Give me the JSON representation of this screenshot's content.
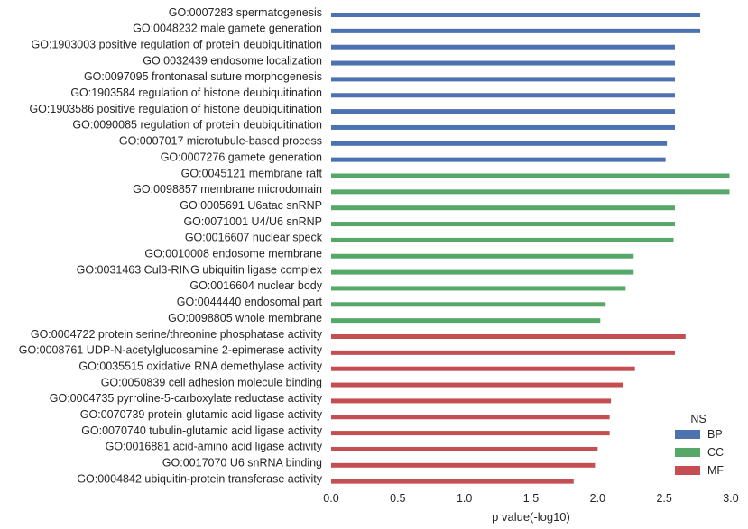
{
  "chart_data": {
    "type": "bar",
    "orientation": "horizontal",
    "xlabel": "p value(-log10)",
    "ylabel": "",
    "xlim": [
      0,
      3.0
    ],
    "x_ticks": [
      "0.0",
      "0.5",
      "1.0",
      "1.5",
      "2.0",
      "2.5",
      "3.0"
    ],
    "grid": false,
    "legend_title": "NS",
    "legend_position": "bottom-right",
    "legend": [
      {
        "name": "BP",
        "color": "#4C72B0"
      },
      {
        "name": "CC",
        "color": "#55A868"
      },
      {
        "name": "MF",
        "color": "#C44E52"
      }
    ],
    "categories": [
      {
        "label": "GO:0007283 spermatogenesis",
        "value": 2.77,
        "ns": "BP"
      },
      {
        "label": "GO:0048232 male gamete generation",
        "value": 2.77,
        "ns": "BP"
      },
      {
        "label": "GO:1903003 positive regulation of protein deubiquitination",
        "value": 2.58,
        "ns": "BP"
      },
      {
        "label": "GO:0032439 endosome localization",
        "value": 2.58,
        "ns": "BP"
      },
      {
        "label": "GO:0097095 frontonasal suture morphogenesis",
        "value": 2.58,
        "ns": "BP"
      },
      {
        "label": "GO:1903584 regulation of histone deubiquitination",
        "value": 2.58,
        "ns": "BP"
      },
      {
        "label": "GO:1903586 positive regulation of histone deubiquitination",
        "value": 2.58,
        "ns": "BP"
      },
      {
        "label": "GO:0090085 regulation of protein deubiquitination",
        "value": 2.58,
        "ns": "BP"
      },
      {
        "label": "GO:0007017 microtubule-based process",
        "value": 2.52,
        "ns": "BP"
      },
      {
        "label": "GO:0007276 gamete generation",
        "value": 2.51,
        "ns": "BP"
      },
      {
        "label": "GO:0045121 membrane raft",
        "value": 2.99,
        "ns": "CC"
      },
      {
        "label": "GO:0098857 membrane microdomain",
        "value": 2.99,
        "ns": "CC"
      },
      {
        "label": "GO:0005691 U6atac snRNP",
        "value": 2.58,
        "ns": "CC"
      },
      {
        "label": "GO:0071001 U4/U6 snRNP",
        "value": 2.58,
        "ns": "CC"
      },
      {
        "label": "GO:0016607 nuclear speck",
        "value": 2.57,
        "ns": "CC"
      },
      {
        "label": "GO:0010008 endosome membrane",
        "value": 2.27,
        "ns": "CC"
      },
      {
        "label": "GO:0031463 Cul3-RING ubiquitin ligase complex",
        "value": 2.27,
        "ns": "CC"
      },
      {
        "label": "GO:0016604 nuclear body",
        "value": 2.21,
        "ns": "CC"
      },
      {
        "label": "GO:0044440 endosomal part",
        "value": 2.06,
        "ns": "CC"
      },
      {
        "label": "GO:0098805 whole membrane",
        "value": 2.02,
        "ns": "CC"
      },
      {
        "label": "GO:0004722 protein serine/threonine phosphatase activity",
        "value": 2.66,
        "ns": "MF"
      },
      {
        "label": "GO:0008761 UDP-N-acetylglucosamine 2-epimerase activity",
        "value": 2.58,
        "ns": "MF"
      },
      {
        "label": "GO:0035515 oxidative RNA demethylase activity",
        "value": 2.28,
        "ns": "MF"
      },
      {
        "label": "GO:0050839 cell adhesion molecule binding",
        "value": 2.19,
        "ns": "MF"
      },
      {
        "label": "GO:0004735 pyrroline-5-carboxylate reductase activity",
        "value": 2.1,
        "ns": "MF"
      },
      {
        "label": "GO:0070739 protein-glutamic acid ligase activity",
        "value": 2.09,
        "ns": "MF"
      },
      {
        "label": "GO:0070740 tubulin-glutamic acid ligase activity",
        "value": 2.09,
        "ns": "MF"
      },
      {
        "label": "GO:0016881 acid-amino acid ligase activity",
        "value": 2.0,
        "ns": "MF"
      },
      {
        "label": "GO:0017070 U6 snRNA binding",
        "value": 1.98,
        "ns": "MF"
      },
      {
        "label": "GO:0004842 ubiquitin-protein transferase activity",
        "value": 1.82,
        "ns": "MF"
      }
    ]
  }
}
